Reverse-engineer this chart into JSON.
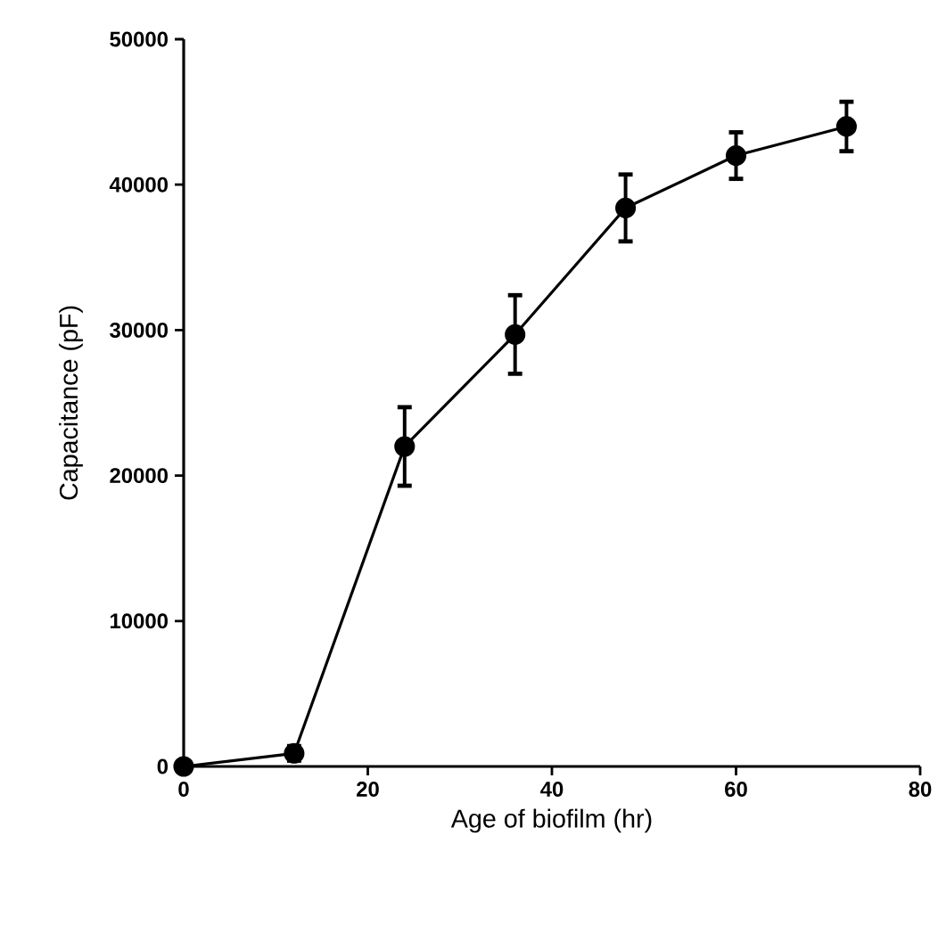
{
  "chart_data": {
    "type": "line",
    "xlabel": "Age of biofilm (hr)",
    "ylabel": "Capacitance (pF)",
    "x": [
      0,
      12,
      24,
      36,
      48,
      60,
      72
    ],
    "series": [
      {
        "color": "#000000",
        "values": [
          0,
          900,
          22000,
          29700,
          38400,
          42000,
          44000
        ],
        "errors": [
          300,
          500,
          2700,
          2700,
          2300,
          1600,
          1700
        ]
      }
    ],
    "xlim": [
      0,
      80
    ],
    "xticks": [
      0,
      20,
      40,
      60,
      80
    ],
    "ylim": [
      0,
      50000
    ],
    "yticks": [
      0,
      10000,
      20000,
      30000,
      40000,
      50000
    ],
    "marker": "circle",
    "line_style": "solid"
  }
}
